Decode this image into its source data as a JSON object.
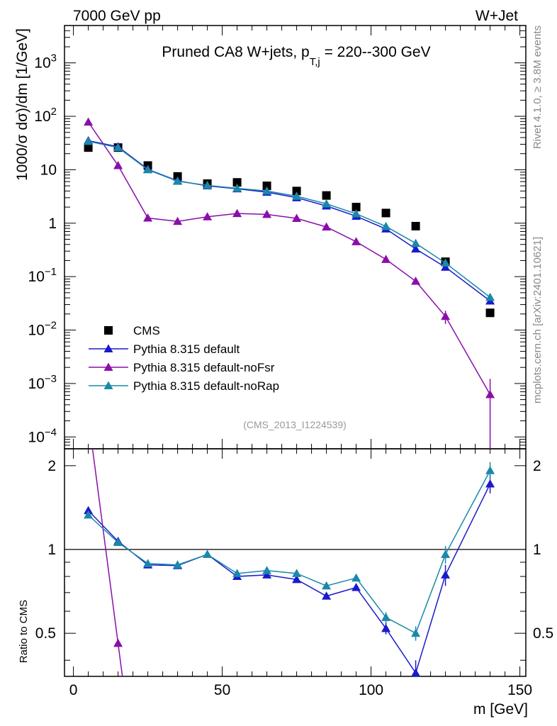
{
  "header": {
    "left": "7000 GeV pp",
    "right": "W+Jet"
  },
  "side_labels": {
    "rivet": "Rivet 4.1.0, ≥ 3.8M events",
    "mcplots": "mcplots.cern.ch [arXiv:2401.10621]"
  },
  "chart_data": {
    "type": "scatter",
    "title": "Pruned CA8 W+jets, p",
    "title_sub": "T,j",
    "title_tail": " = 220--300 GeV",
    "ylabel": "1000/σ   dσ)/dm [1/GeV]",
    "ratio_ylabel": "Ratio to CMS",
    "xlabel": "m [GeV]",
    "analysis_id": "(CMS_2013_I1224539)",
    "xlim": [
      -3,
      152
    ],
    "ylim": [
      6e-05,
      5000
    ],
    "ratio_ylim": [
      0.35,
      2.3
    ],
    "x_ticks": [
      0,
      50,
      100,
      150
    ],
    "x_tick_labels": [
      "0",
      "50",
      "100",
      "150"
    ],
    "y_ticks": [
      {
        "base": "10",
        "exp": "−4",
        "value": 0.0001
      },
      {
        "base": "10",
        "exp": "−3",
        "value": 0.001
      },
      {
        "base": "10",
        "exp": "−2",
        "value": 0.01
      },
      {
        "base": "10",
        "exp": "−1",
        "value": 0.1
      },
      {
        "base": "1",
        "exp": "",
        "value": 1
      },
      {
        "base": "10",
        "exp": "",
        "value": 10
      },
      {
        "base": "10",
        "exp": "2",
        "value": 100
      },
      {
        "base": "10",
        "exp": "3",
        "value": 1000
      }
    ],
    "ratio_ticks": [
      {
        "label": "0.5",
        "value": 0.5
      },
      {
        "label": "1",
        "value": 1
      },
      {
        "label": "2",
        "value": 2
      }
    ],
    "x": [
      5,
      15,
      25,
      35,
      45,
      55,
      65,
      75,
      85,
      95,
      105,
      115,
      125,
      140
    ],
    "series": [
      {
        "name": "CMS",
        "color": "#000000",
        "marker": "square",
        "values": [
          26,
          26,
          12,
          7.5,
          5.5,
          5.8,
          5.0,
          4.0,
          3.3,
          2.0,
          1.55,
          0.88,
          0.19,
          0.021
        ]
      },
      {
        "name": "Pythia 8.315 default",
        "color": "#1a1acc",
        "marker": "triangle",
        "values": [
          35,
          27,
          10.2,
          6.2,
          5.0,
          4.4,
          3.8,
          3.0,
          2.1,
          1.35,
          0.78,
          0.33,
          0.15,
          0.035
        ],
        "ratio": [
          1.38,
          1.07,
          0.88,
          0.875,
          0.96,
          0.8,
          0.81,
          0.78,
          0.68,
          0.73,
          0.52,
          0.36,
          0.81,
          1.72
        ],
        "ratio_err": [
          0,
          0,
          0,
          0,
          0,
          0,
          0,
          0,
          0,
          0.015,
          0.025,
          0.04,
          0.07,
          0.13
        ]
      },
      {
        "name": "Pythia 8.315 default-noFsr",
        "color": "#8a0eaa",
        "marker": "triangle",
        "values": [
          78,
          12,
          1.25,
          1.08,
          1.32,
          1.52,
          1.46,
          1.23,
          0.85,
          0.45,
          0.21,
          0.082,
          0.018,
          0.00062
        ],
        "err": [
          0,
          0,
          0,
          0,
          0,
          0,
          0,
          0,
          0,
          0,
          0,
          0,
          0.005,
          0.0006
        ],
        "ratio": [
          3.0,
          0.46
        ],
        "ratio_err": [
          0,
          0
        ]
      },
      {
        "name": "Pythia 8.315 default-noRap",
        "color": "#1a88aa",
        "marker": "triangle",
        "values": [
          34,
          26,
          10.0,
          6.1,
          5.1,
          4.5,
          4.0,
          3.2,
          2.3,
          1.5,
          0.87,
          0.42,
          0.18,
          0.041
        ],
        "ratio": [
          1.33,
          1.06,
          0.89,
          0.88,
          0.96,
          0.82,
          0.84,
          0.82,
          0.74,
          0.79,
          0.57,
          0.5,
          0.96,
          1.92
        ],
        "ratio_err": [
          0,
          0,
          0,
          0,
          0,
          0,
          0,
          0,
          0,
          0.02,
          0.025,
          0.03,
          0.07,
          0.14
        ]
      }
    ]
  }
}
